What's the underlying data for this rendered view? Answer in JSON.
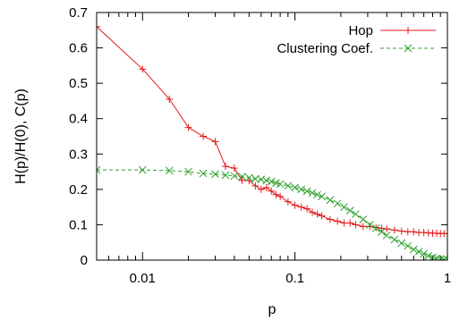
{
  "chart_data": {
    "type": "line",
    "xlabel": "p",
    "ylabel": "H(p)/H(0), C(p)",
    "xscale": "log",
    "xlim": [
      0.005,
      1
    ],
    "ylim": [
      0,
      0.7
    ],
    "x_ticks": [
      {
        "value": 0.01,
        "label": "0.01"
      },
      {
        "value": 0.1,
        "label": "0.1"
      },
      {
        "value": 1,
        "label": "1"
      }
    ],
    "y_ticks": [
      {
        "value": 0,
        "label": "0"
      },
      {
        "value": 0.1,
        "label": "0.1"
      },
      {
        "value": 0.2,
        "label": "0.2"
      },
      {
        "value": 0.3,
        "label": "0.3"
      },
      {
        "value": 0.4,
        "label": "0.4"
      },
      {
        "value": 0.5,
        "label": "0.5"
      },
      {
        "value": 0.6,
        "label": "0.6"
      },
      {
        "value": 0.7,
        "label": "0.7"
      }
    ],
    "grid": false,
    "legend_position": "top-right",
    "series": [
      {
        "name": "Hop",
        "color": "#e41a1c",
        "line_style": "solid",
        "marker": "plus",
        "x": [
          0.005,
          0.01,
          0.015,
          0.02,
          0.025,
          0.03,
          0.035,
          0.04,
          0.045,
          0.05,
          0.055,
          0.06,
          0.065,
          0.07,
          0.075,
          0.08,
          0.09,
          0.1,
          0.11,
          0.12,
          0.13,
          0.14,
          0.15,
          0.17,
          0.19,
          0.21,
          0.23,
          0.25,
          0.28,
          0.31,
          0.34,
          0.37,
          0.4,
          0.45,
          0.5,
          0.55,
          0.6,
          0.65,
          0.7,
          0.75,
          0.8,
          0.85,
          0.9,
          0.95,
          1.0
        ],
        "y": [
          0.66,
          0.54,
          0.455,
          0.375,
          0.35,
          0.335,
          0.265,
          0.26,
          0.225,
          0.225,
          0.21,
          0.2,
          0.205,
          0.195,
          0.185,
          0.18,
          0.165,
          0.155,
          0.15,
          0.145,
          0.135,
          0.13,
          0.125,
          0.115,
          0.11,
          0.105,
          0.105,
          0.1,
          0.095,
          0.095,
          0.092,
          0.09,
          0.088,
          0.085,
          0.082,
          0.08,
          0.08,
          0.078,
          0.078,
          0.077,
          0.076,
          0.076,
          0.075,
          0.075,
          0.075
        ]
      },
      {
        "name": "Clustering Coef.",
        "color": "#2ca02c",
        "line_style": "dashed",
        "marker": "x",
        "x": [
          0.005,
          0.01,
          0.015,
          0.02,
          0.025,
          0.03,
          0.035,
          0.04,
          0.045,
          0.05,
          0.055,
          0.06,
          0.065,
          0.07,
          0.075,
          0.08,
          0.09,
          0.1,
          0.11,
          0.12,
          0.13,
          0.14,
          0.15,
          0.17,
          0.19,
          0.21,
          0.23,
          0.25,
          0.28,
          0.31,
          0.34,
          0.37,
          0.4,
          0.45,
          0.5,
          0.55,
          0.6,
          0.65,
          0.7,
          0.75,
          0.8,
          0.85,
          0.9,
          0.95,
          1.0
        ],
        "y": [
          0.255,
          0.255,
          0.253,
          0.25,
          0.245,
          0.243,
          0.24,
          0.238,
          0.236,
          0.233,
          0.23,
          0.228,
          0.225,
          0.222,
          0.218,
          0.215,
          0.21,
          0.205,
          0.2,
          0.195,
          0.19,
          0.185,
          0.18,
          0.17,
          0.16,
          0.15,
          0.14,
          0.13,
          0.115,
          0.1,
          0.09,
          0.08,
          0.07,
          0.058,
          0.048,
          0.04,
          0.03,
          0.024,
          0.018,
          0.012,
          0.008,
          0.005,
          0.003,
          0.002,
          0.001
        ]
      }
    ]
  }
}
